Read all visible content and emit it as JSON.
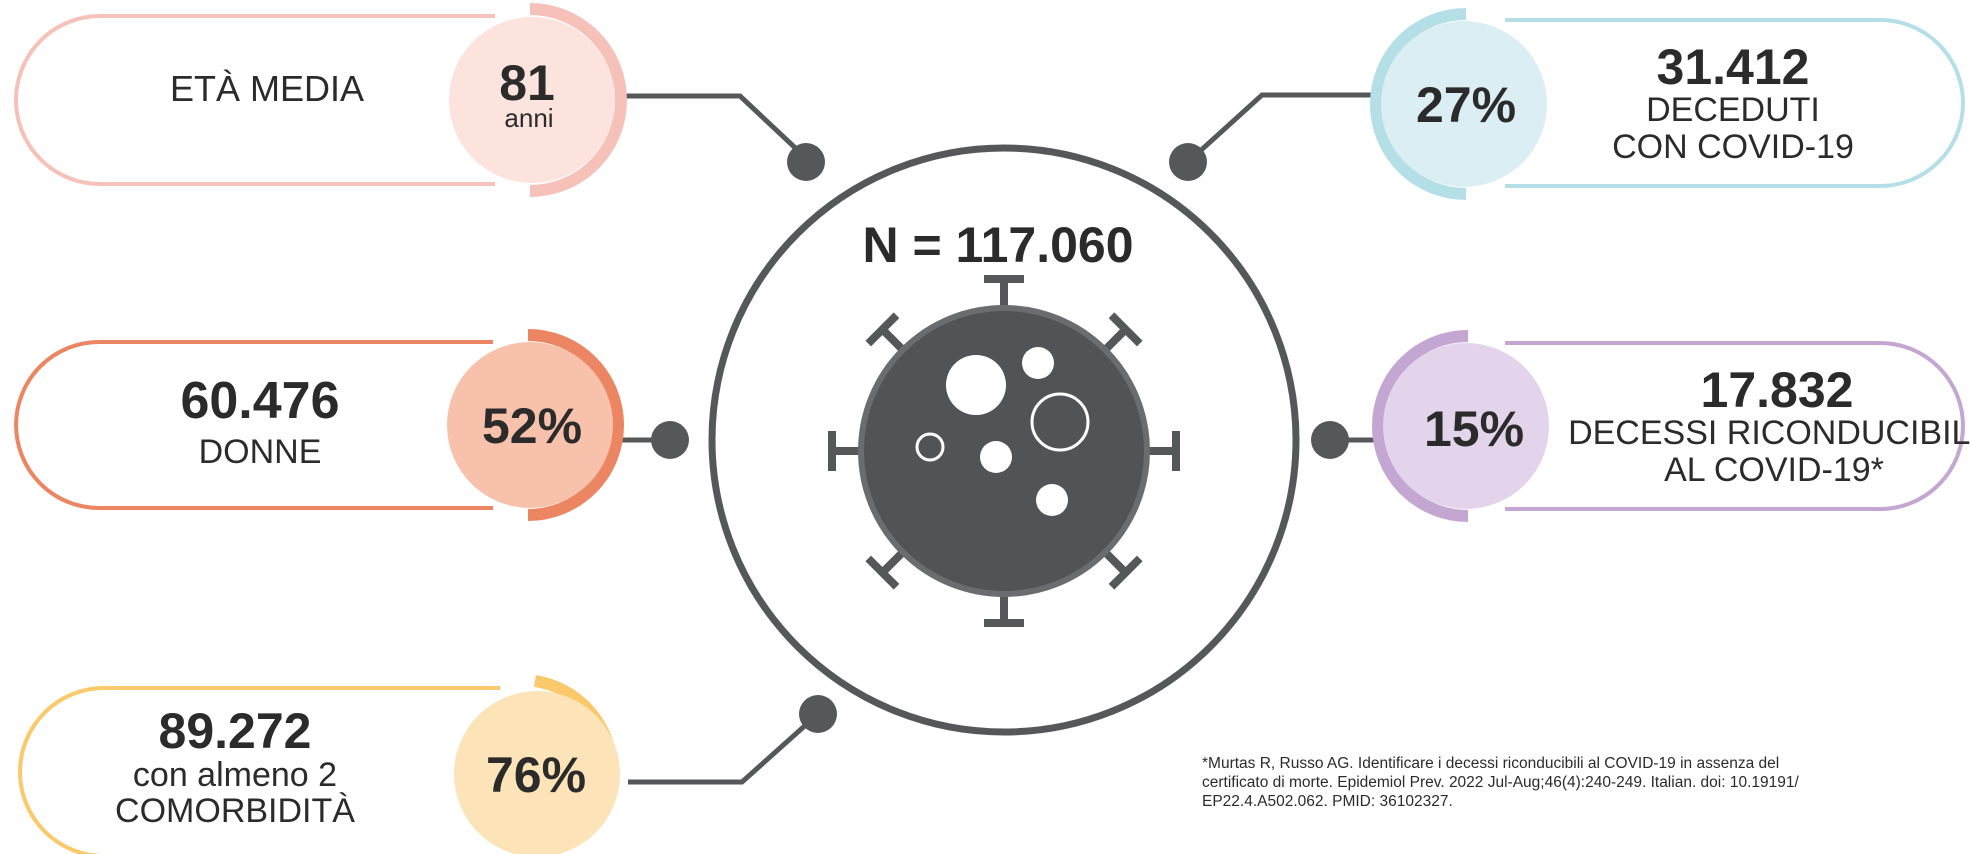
{
  "center": {
    "total_label": "N = 117.060"
  },
  "cards": {
    "eta": {
      "label": "ETÀ MEDIA",
      "value": "81",
      "unit": "anni",
      "color": "#f6c1b8",
      "fill": "#fde3de"
    },
    "donne": {
      "count": "60.476",
      "label": "DONNE",
      "percent": "52%",
      "color": "#ec8561",
      "fill": "#f7c1ac"
    },
    "comorbidita": {
      "count": "89.272",
      "line1": "con almeno 2",
      "line2": "COMORBIDITÀ",
      "percent": "76%",
      "color": "#f9c96b",
      "fill": "#fde4b8"
    },
    "deceduti": {
      "count": "31.412",
      "line1": "DECEDUTI",
      "line2": "CON COVID-19",
      "percent": "27%",
      "color": "#b5dfe6",
      "fill": "#dbeef3"
    },
    "decessi": {
      "count": "17.832",
      "line1": "DECESSI RICONDUCIBILI",
      "line2": "AL COVID-19*",
      "percent": "15%",
      "color": "#c4a6d3",
      "fill": "#e3d4ec"
    }
  },
  "footnote": {
    "line1": "*Murtas R, Russo AG. Identificare i decessi riconducibili al COVID-19 in assenza del",
    "line2": "certificato di morte. Epidemiol Prev. 2022 Jul-Aug;46(4):240-249. Italian. doi: 10.19191/",
    "line3": "EP22.4.A502.062. PMID: 36102327."
  },
  "colors": {
    "dark": "#555859",
    "virus_body": "#505456",
    "virus_rim": "#6a6d6f"
  }
}
